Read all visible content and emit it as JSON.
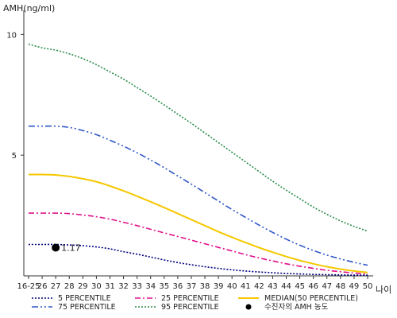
{
  "chart_data": {
    "type": "line",
    "title": "",
    "ylabel": "AMH(ng/ml)",
    "xlabel": "나이",
    "ylim": [
      0,
      11
    ],
    "yticks": [
      5,
      10
    ],
    "categories": [
      "16-25",
      "26",
      "27",
      "28",
      "29",
      "30",
      "31",
      "32",
      "33",
      "34",
      "35",
      "36",
      "37",
      "38",
      "39",
      "40",
      "41",
      "42",
      "43",
      "44",
      "45",
      "46",
      "47",
      "48",
      "49",
      "50"
    ],
    "grid": false,
    "series": [
      {
        "name": "5 PERCENTILE",
        "color": "#000080",
        "dash": "2,2",
        "values": [
          1.3,
          1.3,
          1.3,
          1.28,
          1.25,
          1.2,
          1.12,
          1.0,
          0.9,
          0.78,
          0.66,
          0.55,
          0.46,
          0.38,
          0.31,
          0.25,
          0.2,
          0.16,
          0.13,
          0.1,
          0.08,
          0.06,
          0.05,
          0.04,
          0.03,
          0.03
        ]
      },
      {
        "name": "25 PERCENTILE",
        "color": "#e0108a",
        "dash": "7,3,2,3",
        "values": [
          2.6,
          2.6,
          2.6,
          2.58,
          2.52,
          2.45,
          2.35,
          2.22,
          2.08,
          1.93,
          1.78,
          1.63,
          1.48,
          1.33,
          1.18,
          1.03,
          0.88,
          0.74,
          0.62,
          0.5,
          0.4,
          0.31,
          0.23,
          0.17,
          0.12,
          0.08
        ]
      },
      {
        "name": "MEDIAN(50 PERCENTILE)",
        "color": "#f5c800",
        "dash": "",
        "values": [
          4.2,
          4.2,
          4.18,
          4.12,
          4.02,
          3.9,
          3.72,
          3.52,
          3.3,
          3.07,
          2.83,
          2.58,
          2.33,
          2.08,
          1.83,
          1.6,
          1.38,
          1.17,
          0.98,
          0.8,
          0.64,
          0.5,
          0.38,
          0.28,
          0.2,
          0.14
        ]
      },
      {
        "name": "75 PERCENTILE",
        "color": "#2e56c8",
        "dash": "8,3,2,3,2,3",
        "values": [
          6.2,
          6.2,
          6.2,
          6.15,
          6.02,
          5.85,
          5.62,
          5.37,
          5.1,
          4.8,
          4.48,
          4.14,
          3.8,
          3.45,
          3.1,
          2.75,
          2.42,
          2.1,
          1.8,
          1.52,
          1.27,
          1.05,
          0.86,
          0.7,
          0.56,
          0.44
        ]
      },
      {
        "name": "95 PERCENTILE",
        "color": "#2a8a4a",
        "dash": "2,2",
        "values": [
          9.6,
          9.45,
          9.35,
          9.2,
          9.0,
          8.75,
          8.45,
          8.15,
          7.8,
          7.45,
          7.08,
          6.7,
          6.32,
          5.92,
          5.52,
          5.12,
          4.72,
          4.32,
          3.92,
          3.55,
          3.2,
          2.85,
          2.55,
          2.28,
          2.05,
          1.85
        ]
      }
    ],
    "markers": [
      {
        "name": "수진자의 AMH 농도",
        "x": "27",
        "y": 1.17,
        "label": "1.17",
        "color": "#000000"
      }
    ],
    "legend_position": "bottom"
  }
}
